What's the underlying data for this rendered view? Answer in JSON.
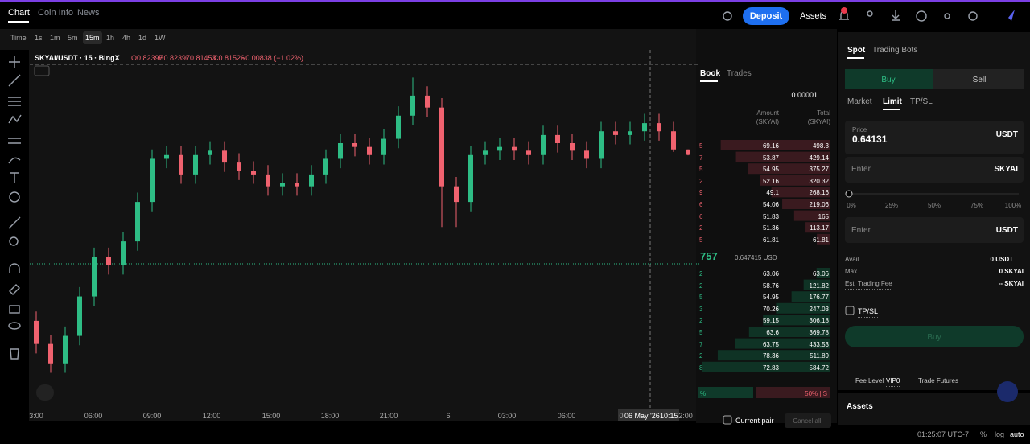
{
  "nav": {
    "tabs": [
      "Chart",
      "Coin Info",
      "News"
    ],
    "deposit": "Deposit",
    "assets": "Assets"
  },
  "toolbar": {
    "intervals": [
      "Time",
      "1s",
      "1m",
      "5m",
      "15m",
      "1h",
      "4h",
      "1d",
      "1W"
    ]
  },
  "chart": {
    "legend": "SKYAI/USDT · 15 · BingX",
    "ohlc": [
      "O0.82397",
      "H0.82397",
      "L0.81453",
      "C0.81526",
      "−0.00838 (−1.02%)"
    ],
    "xlabels": [
      "3:00",
      "06:00",
      "09:00",
      "12:00",
      "15:00",
      "18:00",
      "21:00",
      "6",
      "03:00",
      "06:00",
      "0",
      "2:00"
    ],
    "crosshair": [
      "06 May '26",
      "10:15"
    ],
    "ylim": [
      0.42,
      0.96
    ],
    "candles": [
      [
        0.55,
        0.565,
        0.498,
        0.513
      ],
      [
        0.513,
        0.528,
        0.467,
        0.482
      ],
      [
        0.482,
        0.541,
        0.467,
        0.526
      ],
      [
        0.526,
        0.604,
        0.511,
        0.589
      ],
      [
        0.589,
        0.667,
        0.574,
        0.652
      ],
      [
        0.652,
        0.667,
        0.624,
        0.639
      ],
      [
        0.639,
        0.692,
        0.624,
        0.677
      ],
      [
        0.677,
        0.755,
        0.662,
        0.74
      ],
      [
        0.74,
        0.824,
        0.725,
        0.809
      ],
      [
        0.809,
        0.83,
        0.794,
        0.815
      ],
      [
        0.815,
        0.83,
        0.769,
        0.784
      ],
      [
        0.784,
        0.83,
        0.769,
        0.815
      ],
      [
        0.815,
        0.837,
        0.8,
        0.822
      ],
      [
        0.822,
        0.837,
        0.788,
        0.803
      ],
      [
        0.803,
        0.818,
        0.775,
        0.79
      ],
      [
        0.79,
        0.805,
        0.769,
        0.784
      ],
      [
        0.784,
        0.799,
        0.75,
        0.765
      ],
      [
        0.765,
        0.786,
        0.75,
        0.771
      ],
      [
        0.771,
        0.786,
        0.75,
        0.765
      ],
      [
        0.765,
        0.799,
        0.75,
        0.784
      ],
      [
        0.784,
        0.824,
        0.769,
        0.809
      ],
      [
        0.809,
        0.849,
        0.794,
        0.834
      ],
      [
        0.834,
        0.849,
        0.813,
        0.828
      ],
      [
        0.828,
        0.843,
        0.8,
        0.815
      ],
      [
        0.815,
        0.856,
        0.8,
        0.841
      ],
      [
        0.841,
        0.893,
        0.826,
        0.878
      ],
      [
        0.878,
        0.939,
        0.863,
        0.91
      ],
      [
        0.91,
        0.925,
        0.876,
        0.891
      ],
      [
        0.891,
        0.906,
        0.7,
        0.765
      ],
      [
        0.765,
        0.78,
        0.7,
        0.74
      ],
      [
        0.74,
        0.83,
        0.725,
        0.815
      ],
      [
        0.815,
        0.837,
        0.8,
        0.822
      ],
      [
        0.822,
        0.843,
        0.807,
        0.828
      ],
      [
        0.828,
        0.843,
        0.807,
        0.822
      ],
      [
        0.822,
        0.837,
        0.8,
        0.815
      ],
      [
        0.815,
        0.862,
        0.8,
        0.847
      ],
      [
        0.847,
        0.862,
        0.819,
        0.834
      ],
      [
        0.834,
        0.849,
        0.807,
        0.822
      ],
      [
        0.822,
        0.837,
        0.794,
        0.809
      ],
      [
        0.809,
        0.868,
        0.794,
        0.853
      ],
      [
        0.853,
        0.868,
        0.832,
        0.847
      ],
      [
        0.847,
        0.868,
        0.832,
        0.853
      ],
      [
        0.853,
        0.881,
        0.838,
        0.866
      ],
      [
        0.866,
        0.881,
        0.838,
        0.853
      ],
      [
        0.853,
        0.868,
        0.82,
        0.824
      ],
      [
        0.82397,
        0.82397,
        0.81453,
        0.81526
      ]
    ]
  },
  "orderbook": {
    "tabs": [
      "Book",
      "Trades"
    ],
    "precision": "0.00001",
    "headers": [
      [
        "Amount",
        "(SKYAI)"
      ],
      [
        "Total",
        "(SKYAI)"
      ]
    ],
    "asks": [
      [
        "5",
        69.16,
        498.3
      ],
      [
        "7",
        53.87,
        429.14
      ],
      [
        "5",
        54.95,
        375.27
      ],
      [
        "2",
        52.16,
        320.32
      ],
      [
        "9",
        49.1,
        268.16
      ],
      [
        "6",
        54.06,
        219.06
      ],
      [
        "6",
        51.83,
        165
      ],
      [
        "2",
        51.36,
        113.17
      ],
      [
        "5",
        61.81,
        61.81
      ]
    ],
    "mid": "757",
    "mid_usd": "0.647415 USD",
    "bids": [
      [
        "2",
        63.06,
        63.06
      ],
      [
        "2",
        58.76,
        121.82
      ],
      [
        "5",
        54.95,
        176.77
      ],
      [
        "3",
        70.26,
        247.03
      ],
      [
        "2",
        59.15,
        306.18
      ],
      [
        "5",
        63.6,
        369.78
      ],
      [
        "7",
        63.75,
        433.53
      ],
      [
        "2",
        78.36,
        511.89
      ],
      [
        "8",
        72.83,
        584.72
      ]
    ],
    "ratio": [
      "%",
      "50% | S"
    ],
    "current_pair": "Current pair",
    "cancel_all": "Cancel all"
  },
  "trade": {
    "tabs": [
      "Spot",
      "Trading Bots"
    ],
    "sides": [
      "Buy",
      "Sell"
    ],
    "order_types": [
      "Market",
      "Limit",
      "TP/SL"
    ],
    "price_label": "Price",
    "price": "0.64131",
    "price_unit": "USDT",
    "amount_placeholder": "Enter",
    "amount_unit": "SKYAI",
    "slider": [
      "0%",
      "25%",
      "50%",
      "75%",
      "100%"
    ],
    "total_placeholder": "Enter",
    "total_unit": "USDT",
    "avail_label": "Avail.",
    "avail": "0 USDT",
    "max_label": "Max",
    "max": "0 SKYAI",
    "fee_label": "Est. Trading Fee",
    "fee": "-- SKYAI",
    "tpsl": "TP/SL",
    "buy_button": "Buy",
    "fee_level": "Fee Level",
    "vip": "VIP0",
    "trade_futures": "Trade Futures",
    "assets": "Assets"
  },
  "status": {
    "time": "01:25:07 UTC-7",
    "percent": "%",
    "log": "log",
    "auto": "auto"
  }
}
